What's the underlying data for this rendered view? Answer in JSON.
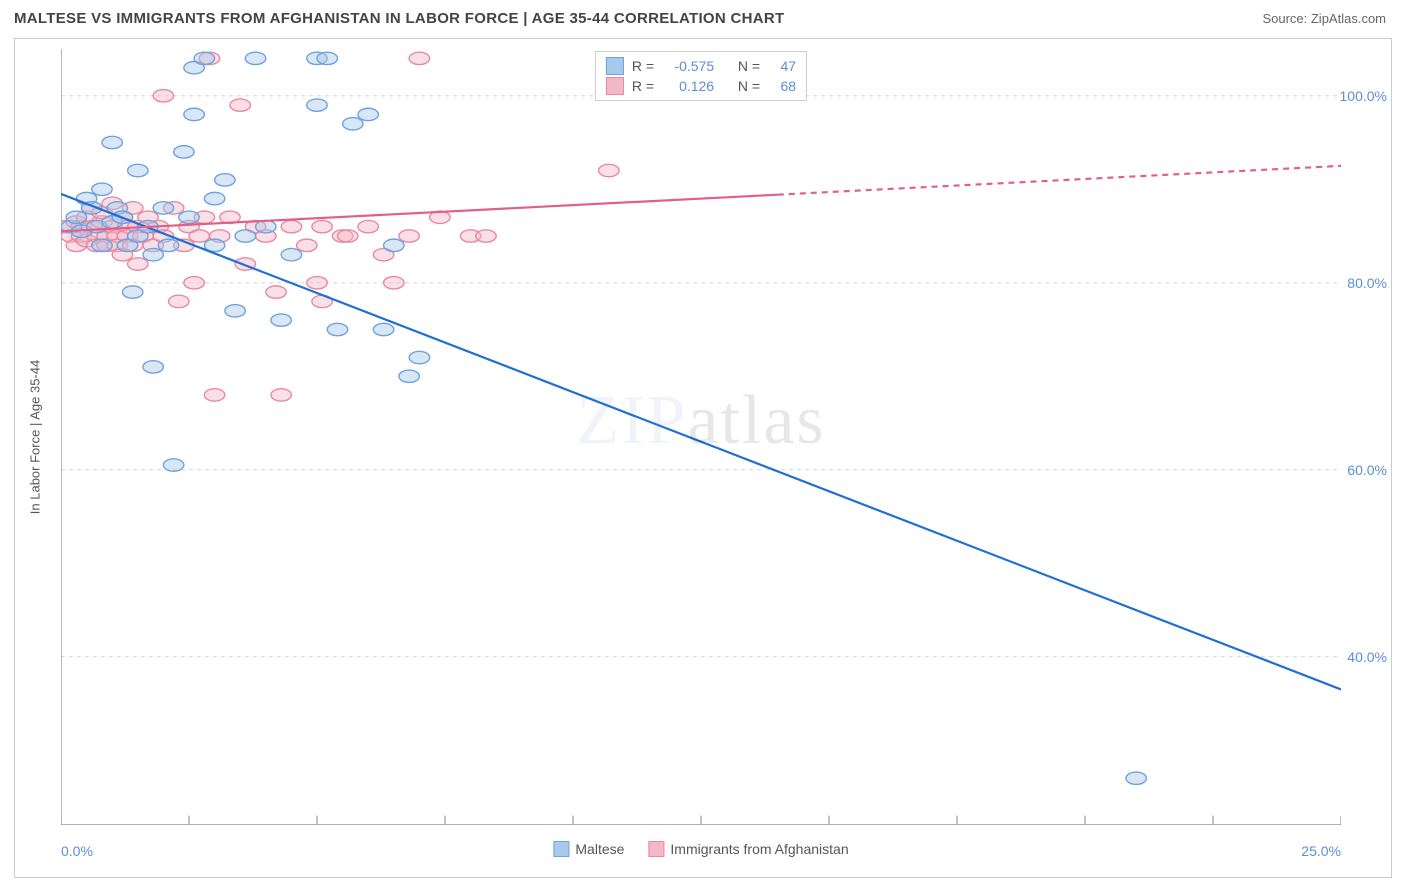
{
  "header": {
    "title": "MALTESE VS IMMIGRANTS FROM AFGHANISTAN IN LABOR FORCE | AGE 35-44 CORRELATION CHART",
    "source": "Source: ZipAtlas.com"
  },
  "watermark": {
    "prefix": "ZIP",
    "suffix": "atlas"
  },
  "chart": {
    "type": "scatter",
    "ylabel": "In Labor Force | Age 35-44",
    "xlim": [
      0,
      25
    ],
    "ylim": [
      22,
      105
    ],
    "x_ticks_minor": [
      0,
      2.5,
      5,
      7.5,
      10,
      12.5,
      15,
      17.5,
      20,
      22.5,
      25
    ],
    "x_tick_labels": {
      "min": "0.0%",
      "max": "25.0%"
    },
    "y_grid": [
      40,
      60,
      80,
      100
    ],
    "y_tick_labels": [
      "40.0%",
      "60.0%",
      "80.0%",
      "100.0%"
    ],
    "grid_color": "#dddddd",
    "axis_color": "#999999",
    "background_color": "#ffffff",
    "marker_radius": 8,
    "marker_opacity": 0.45,
    "line_width": 2.2,
    "series": [
      {
        "name": "Maltese",
        "color_fill": "#a8c8ec",
        "color_stroke": "#6fa3dd",
        "line_color": "#1f6fd4",
        "R": "-0.575",
        "N": "47",
        "regression": {
          "x1": 0,
          "y1": 89.5,
          "x2": 25,
          "y2": 36.5,
          "dash_from_x": null
        },
        "points": [
          [
            0.2,
            86
          ],
          [
            0.3,
            87
          ],
          [
            0.4,
            85.5
          ],
          [
            0.5,
            89
          ],
          [
            0.6,
            88
          ],
          [
            0.7,
            86
          ],
          [
            0.8,
            84
          ],
          [
            0.8,
            90
          ],
          [
            1.0,
            95
          ],
          [
            1.0,
            86.5
          ],
          [
            1.1,
            88
          ],
          [
            1.2,
            87
          ],
          [
            1.3,
            84
          ],
          [
            1.4,
            79
          ],
          [
            1.5,
            92
          ],
          [
            1.5,
            85
          ],
          [
            1.7,
            86
          ],
          [
            1.8,
            71
          ],
          [
            1.8,
            83
          ],
          [
            2.0,
            88
          ],
          [
            2.1,
            84
          ],
          [
            2.2,
            60.5
          ],
          [
            2.4,
            94
          ],
          [
            2.5,
            87
          ],
          [
            2.6,
            103
          ],
          [
            2.6,
            98
          ],
          [
            2.8,
            104
          ],
          [
            3.0,
            84
          ],
          [
            3.0,
            89
          ],
          [
            3.2,
            91
          ],
          [
            3.4,
            77
          ],
          [
            3.6,
            85
          ],
          [
            3.8,
            104
          ],
          [
            4.0,
            86
          ],
          [
            4.3,
            76
          ],
          [
            4.5,
            83
          ],
          [
            5.0,
            104
          ],
          [
            5.0,
            99
          ],
          [
            5.2,
            104
          ],
          [
            5.4,
            75
          ],
          [
            5.7,
            97
          ],
          [
            6.0,
            98
          ],
          [
            6.3,
            75
          ],
          [
            6.5,
            84
          ],
          [
            6.8,
            70
          ],
          [
            7.0,
            72
          ],
          [
            21.0,
            27
          ]
        ]
      },
      {
        "name": "Immigrants from Afghanistan",
        "color_fill": "#f3b8c7",
        "color_stroke": "#e889a3",
        "line_color": "#e26088",
        "R": "0.126",
        "N": "68",
        "regression": {
          "x1": 0,
          "y1": 85.5,
          "x2": 25,
          "y2": 92.5,
          "dash_from_x": 14
        },
        "points": [
          [
            0.1,
            86
          ],
          [
            0.2,
            85
          ],
          [
            0.3,
            84
          ],
          [
            0.3,
            86.5
          ],
          [
            0.4,
            86
          ],
          [
            0.4,
            85
          ],
          [
            0.5,
            87
          ],
          [
            0.5,
            84.5
          ],
          [
            0.6,
            86
          ],
          [
            0.6,
            88
          ],
          [
            0.7,
            85
          ],
          [
            0.7,
            84
          ],
          [
            0.8,
            86.5
          ],
          [
            0.8,
            87.5
          ],
          [
            0.9,
            85
          ],
          [
            0.9,
            84
          ],
          [
            1.0,
            86
          ],
          [
            1.0,
            88.5
          ],
          [
            1.1,
            85
          ],
          [
            1.1,
            84
          ],
          [
            1.2,
            87
          ],
          [
            1.2,
            83
          ],
          [
            1.3,
            86
          ],
          [
            1.3,
            85
          ],
          [
            1.4,
            88
          ],
          [
            1.4,
            84
          ],
          [
            1.5,
            86
          ],
          [
            1.5,
            82
          ],
          [
            1.6,
            85
          ],
          [
            1.7,
            87
          ],
          [
            1.8,
            84
          ],
          [
            1.9,
            86
          ],
          [
            2.0,
            85
          ],
          [
            2.0,
            100
          ],
          [
            2.2,
            88
          ],
          [
            2.3,
            78
          ],
          [
            2.4,
            84
          ],
          [
            2.5,
            86
          ],
          [
            2.6,
            80
          ],
          [
            2.7,
            85
          ],
          [
            2.8,
            87
          ],
          [
            2.9,
            104
          ],
          [
            3.0,
            68
          ],
          [
            3.1,
            85
          ],
          [
            3.3,
            87
          ],
          [
            3.5,
            99
          ],
          [
            3.6,
            82
          ],
          [
            3.8,
            86
          ],
          [
            4.0,
            85
          ],
          [
            4.2,
            79
          ],
          [
            4.3,
            68
          ],
          [
            4.5,
            86
          ],
          [
            4.8,
            84
          ],
          [
            5.0,
            80
          ],
          [
            5.1,
            86
          ],
          [
            5.1,
            78
          ],
          [
            5.5,
            85
          ],
          [
            5.6,
            85
          ],
          [
            6.0,
            86
          ],
          [
            6.3,
            83
          ],
          [
            6.5,
            80
          ],
          [
            6.8,
            85
          ],
          [
            7.0,
            104
          ],
          [
            7.4,
            87
          ],
          [
            8.0,
            85
          ],
          [
            8.3,
            85
          ],
          [
            10.7,
            92
          ],
          [
            11.0,
            104
          ]
        ]
      }
    ],
    "bottom_legend": [
      {
        "label": "Maltese",
        "fill": "#a8c8ec",
        "stroke": "#6fa3dd"
      },
      {
        "label": "Immigrants from Afghanistan",
        "fill": "#f3b8c7",
        "stroke": "#e889a3"
      }
    ],
    "stats_box": {
      "R_label": "R =",
      "N_label": "N ="
    }
  }
}
